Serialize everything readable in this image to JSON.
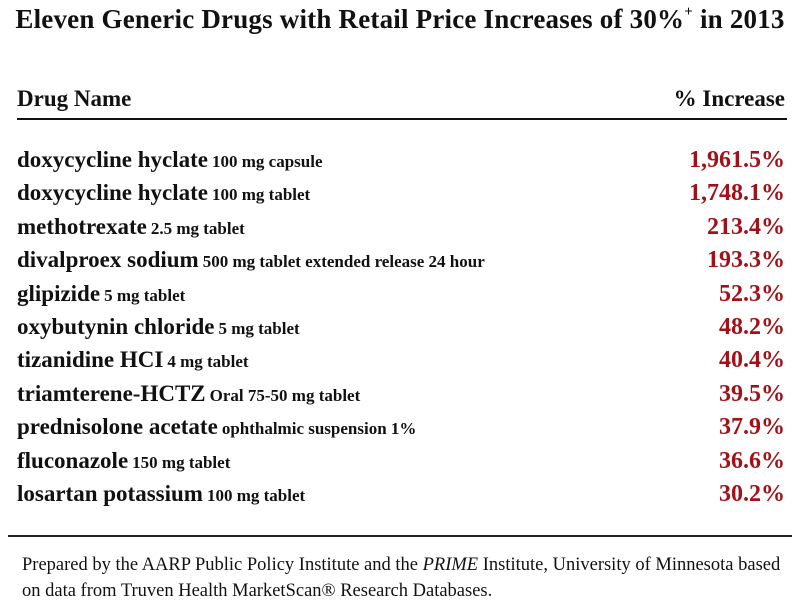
{
  "title": {
    "main": "Eleven Generic Drugs with Retail Price Increases of 30%",
    "sup": "+",
    "suffix": " in 2013"
  },
  "table_header": {
    "drug": "Drug Name",
    "increase": "% Increase"
  },
  "accent_color": "#a01218",
  "chart_data": {
    "type": "table",
    "columns": [
      "Drug Name",
      "% Increase"
    ],
    "rows": [
      {
        "name": "doxycycline hyclate",
        "detail": "100 mg capsule",
        "increase": "1,961.5%",
        "value": 1961.5
      },
      {
        "name": "doxycycline hyclate",
        "detail": "100 mg tablet",
        "increase": "1,748.1%",
        "value": 1748.1
      },
      {
        "name": "methotrexate",
        "detail": "2.5 mg tablet",
        "increase": "213.4%",
        "value": 213.4
      },
      {
        "name": "divalproex sodium",
        "detail": "500 mg tablet extended release 24 hour",
        "increase": "193.3%",
        "value": 193.3
      },
      {
        "name": "glipizide",
        "detail": "5 mg tablet",
        "increase": "52.3%",
        "value": 52.3
      },
      {
        "name": "oxybutynin chloride",
        "detail": "5 mg tablet",
        "increase": "48.2%",
        "value": 48.2
      },
      {
        "name": "tizanidine HCI",
        "detail": "4 mg tablet",
        "increase": "40.4%",
        "value": 40.4
      },
      {
        "name": "triamterene-HCTZ",
        "detail": "Oral 75-50 mg tablet",
        "increase": "39.5%",
        "value": 39.5
      },
      {
        "name": "prednisolone acetate",
        "detail": "ophthalmic suspension 1%",
        "increase": "37.9%",
        "value": 37.9
      },
      {
        "name": "fluconazole",
        "detail": "150 mg tablet",
        "increase": "36.6%",
        "value": 36.6
      },
      {
        "name": "losartan potassium",
        "detail": "100 mg tablet",
        "increase": "30.2%",
        "value": 30.2
      }
    ]
  },
  "footer": {
    "part1": "Prepared by the AARP Public Policy Institute and the ",
    "italic": "PRIME",
    "part2": " Institute, University of Minnesota based on data from Truven Health MarketScan® Research Databases."
  }
}
